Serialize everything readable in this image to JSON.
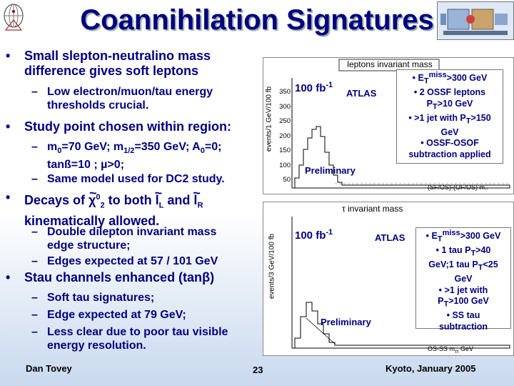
{
  "slide": {
    "title": "Coannihilation Signatures",
    "page_number": "23",
    "author": "Dan Tovey",
    "venue": "Kyoto, January 2005"
  },
  "bullets": {
    "b1_line1": "Small slepton-neutralino mass",
    "b1_line2": "difference gives soft leptons",
    "b1_sub1_line1": "Low electron/muon/tau energy",
    "b1_sub1_line2": "thresholds crucial.",
    "b2": "Study point chosen within region:",
    "b2_sub1_a": "m",
    "b2_sub1_b": "=70 GeV; m",
    "b2_sub1_c": "=350 GeV; A",
    "b2_sub1_d": "=0;",
    "b2_sub1_line2": "tanß=10 ; µ>0;",
    "b2_sub2": "Same model used for DC2 study.",
    "b3_a": "Decays of ",
    "b3_b": " to both ",
    "b3_c": " and ",
    "b3_line2": "kinematically allowed.",
    "b3_sub1_line1": "Double dilepton invariant mass",
    "b3_sub1_line2": "edge structure;",
    "b3_sub2": "Edges expected at 57 / 101 GeV",
    "b4_a": "Stau channels enhanced (tan",
    "b4_b": ")",
    "b4_sub1": "Soft tau signatures;",
    "b4_sub2": "Edge expected at 79 GeV;",
    "b4_sub3_line1": "Less clear due to poor tau visible",
    "b4_sub3_line2": "energy resolution."
  },
  "symbols": {
    "bullet": "•",
    "dash": "–",
    "sub_0": "0",
    "sub_half": "1/2",
    "chi": "χ",
    "chi_tilde": "~",
    "sup_0": "0",
    "sub_2": "2",
    "l": "l",
    "sub_L": "L",
    "sub_R": "R",
    "beta": "β"
  },
  "plot_top": {
    "header": "leptons invariant mass",
    "lumi": "100 fb",
    "lumi_exp": "-1",
    "atlas": "ATLAS",
    "preliminary": "Preliminary",
    "ylabel": "events/1 GeV/100 fb",
    "yticks": [
      "350",
      "300",
      "250",
      "200",
      "150",
      "100",
      "50"
    ],
    "xlabel": "(SF/OS)-(OF/OS) m..",
    "cuts": [
      "• E",
      "T",
      "miss",
      ">300 GeV",
      "• 2 OSSF leptons",
      "P",
      "T",
      ">10 GeV",
      "• >1 jet with P",
      "T",
      ">150",
      "GeV",
      "• OSSF-OSOF",
      "subtraction applied"
    ]
  },
  "plot_bottom": {
    "header": "τ invariant mass",
    "lumi": "100 fb",
    "lumi_exp": "-1",
    "atlas": "ATLAS",
    "preliminary": "Preliminary",
    "ylabel": "events/3 GeV/100 fb",
    "xlabel": "OS-SS m",
    "xlabel_sub": "ττ",
    "xlabel_unit": " GeV",
    "cuts": [
      "• E",
      "T",
      "miss",
      ">300 GeV",
      "• 1 tau P",
      "T",
      ">40",
      "GeV;1 tau P",
      "T",
      "<25",
      "GeV",
      "• >1 jet with",
      "P",
      "T",
      ">100 GeV",
      "• SS tau",
      "subtraction"
    ]
  }
}
